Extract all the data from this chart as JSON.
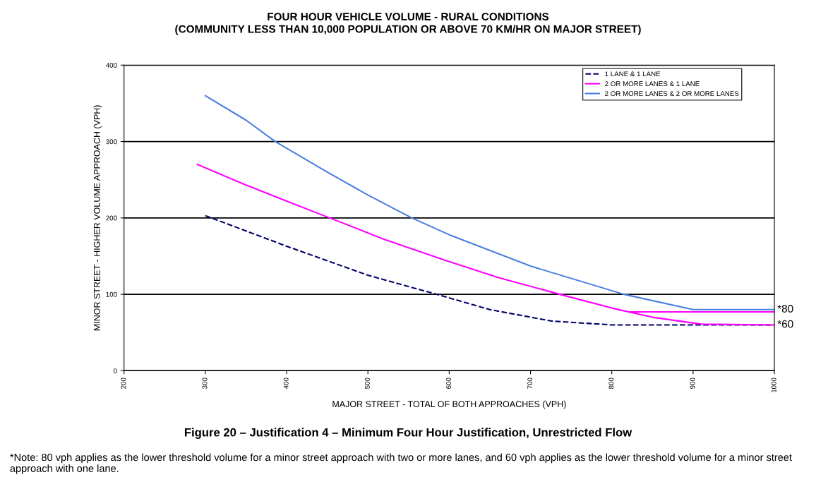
{
  "chart_data": {
    "type": "line",
    "title": "FOUR HOUR VEHICLE VOLUME - RURAL CONDITIONS\n(COMMUNITY LESS THAN 10,000 POPULATION OR ABOVE 70 KM/HR ON MAJOR STREET)",
    "xlabel": "MAJOR STREET - TOTAL OF BOTH APPROACHES (VPH)",
    "ylabel": "MINOR STREET - HIGHER VOLUME APPROACH (VPH)",
    "series": [
      {
        "name": "1 LANE & 1 LANE",
        "color": "#000066",
        "line_style": "dashed",
        "x": [
          300,
          400,
          500,
          588,
          650,
          726,
          800,
          1000
        ],
        "values": [
          203,
          163,
          125,
          99,
          80,
          65,
          60,
          60
        ]
      },
      {
        "name": "2 OR MORE LANES & 1 LANE",
        "color": "#ff00ff",
        "line_style": "solid",
        "x": [
          290,
          350,
          400,
          453,
          520,
          594,
          660,
          736,
          800,
          850,
          910,
          1000
        ],
        "values": [
          270,
          243,
          222,
          200,
          172,
          145,
          122,
          100,
          82,
          70,
          61,
          60
        ]
      },
      {
        "color": "#ff00ff",
        "line_style": "solid",
        "x": [
          823,
          1000
        ],
        "values": [
          77,
          77
        ]
      },
      {
        "name": "2 OR MORE LANES & 2 OR MORE LANES",
        "color": "#4a7fe0",
        "line_style": "solid",
        "x": [
          300,
          350,
          386,
          450,
          500,
          554,
          600,
          700,
          815,
          900,
          1000
        ],
        "values": [
          360,
          328,
          300,
          260,
          230,
          200,
          178,
          137,
          100,
          80,
          80
        ]
      }
    ],
    "xlim": [
      200,
      1000
    ],
    "xticks": [
      200,
      300,
      400,
      500,
      600,
      700,
      800,
      900,
      1000
    ],
    "ylim": [
      0,
      400
    ],
    "yticks": [
      0,
      100,
      200,
      300,
      400
    ],
    "grid": "y",
    "legend": "top right",
    "annotations": [
      {
        "text": "*80",
        "x": 1000,
        "y": 80
      },
      {
        "text": "*60",
        "x": 1000,
        "y": 60
      },
      "Figure 20 – Justification 4 – Minimum Four Hour Justification, Unrestricted Flow",
      "*Note: 80 vph applies as the lower threshold volume for a minor street approach with two or more lanes, and 60 vph applies as the lower threshold volume for a minor street approach with one lane."
    ]
  }
}
